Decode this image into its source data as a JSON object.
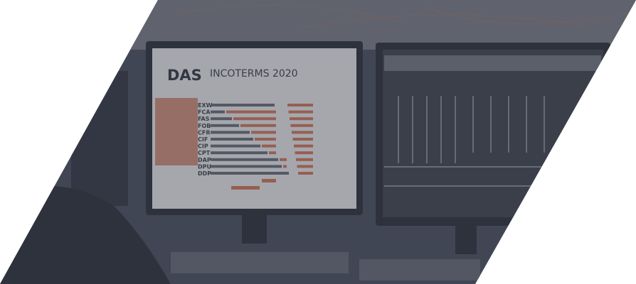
{
  "screen": {
    "logo": "DAS",
    "title": "INCOTERMS 2020",
    "terms": [
      "EXW",
      "FCA",
      "FAS",
      "FOB",
      "CFR",
      "CIF",
      "CIP",
      "CPT",
      "DAP",
      "DPU",
      "DDP"
    ]
  }
}
